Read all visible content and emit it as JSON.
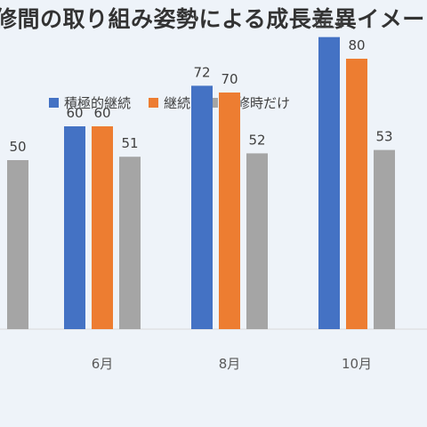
{
  "chart_data": {
    "type": "bar",
    "title": "修間の取り組み姿勢による成長差異イメー",
    "categories": [
      "",
      "6月",
      "8月",
      "10月"
    ],
    "series": [
      {
        "name": "積極的継続",
        "color": "#4472c4",
        "values": [
          null,
          60,
          72,
          86.4
        ]
      },
      {
        "name": "継続",
        "color": "#ed7d31",
        "values": [
          null,
          60,
          70,
          80
        ]
      },
      {
        "name": "研修時だけ",
        "color": "#a5a5a5",
        "values": [
          50,
          51,
          52,
          53
        ]
      }
    ],
    "ylim": [
      0,
      100
    ],
    "grid": false,
    "legend": "top",
    "baseline_color": "#d9d9d9"
  }
}
